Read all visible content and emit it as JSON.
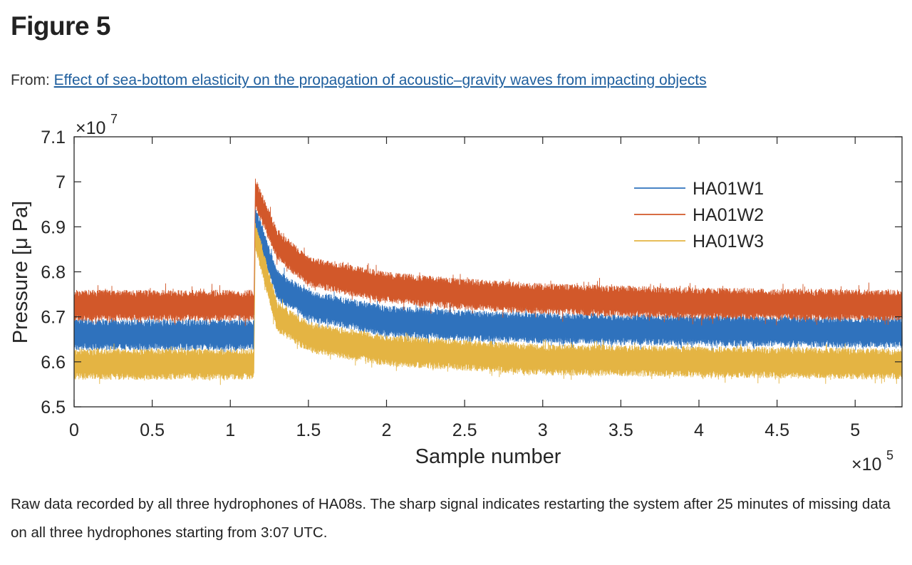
{
  "page": {
    "title": "Figure 5",
    "from_label": "From:",
    "article_link": "Effect of sea-bottom elasticity on the propagation of acoustic–gravity waves from impacting objects",
    "caption": "Raw data recorded by all three hydrophones of HA08s. The sharp signal indicates restarting the system after 25 minutes of missing data on all three hydrophones starting from 3:07 UTC."
  },
  "chart_data": {
    "type": "line",
    "xlabel": "Sample number",
    "ylabel": "Pressure [μ Pa]",
    "x_multiplier": "×10^5",
    "y_multiplier": "×10^7",
    "xlim": [
      0,
      5.3
    ],
    "ylim": [
      6.5,
      7.1
    ],
    "x_ticks": [
      "0",
      "0.5",
      "1",
      "1.5",
      "2",
      "2.5",
      "3",
      "3.5",
      "4",
      "4.5",
      "5"
    ],
    "y_ticks": [
      "6.5",
      "6.6",
      "6.7",
      "6.8",
      "6.9",
      "7",
      "7.1"
    ],
    "grid": false,
    "legend_position": "top-right",
    "x": [
      0,
      1.15,
      1.16,
      1.3,
      1.5,
      2,
      2.5,
      3,
      4,
      5.3
    ],
    "noise_band_halfwidth": 0.035,
    "series": [
      {
        "name": "HA01W1",
        "color": "#2f72bd",
        "values": [
          6.66,
          6.66,
          6.915,
          6.77,
          6.725,
          6.69,
          6.68,
          6.675,
          6.67,
          6.665
        ]
      },
      {
        "name": "HA01W2",
        "color": "#d2582a",
        "values": [
          6.725,
          6.725,
          6.975,
          6.86,
          6.8,
          6.765,
          6.75,
          6.74,
          6.73,
          6.725
        ]
      },
      {
        "name": "HA01W3",
        "color": "#e4b443",
        "values": [
          6.595,
          6.595,
          6.88,
          6.7,
          6.655,
          6.625,
          6.615,
          6.605,
          6.6,
          6.595
        ]
      }
    ]
  }
}
